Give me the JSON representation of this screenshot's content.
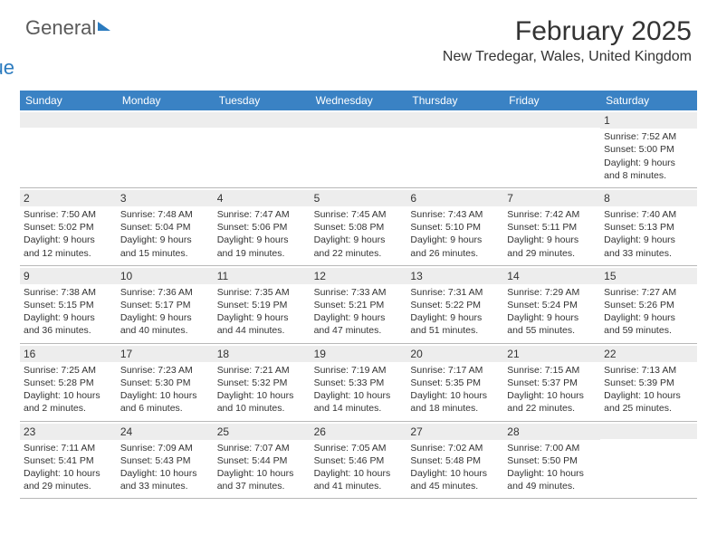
{
  "logo": {
    "text1": "General",
    "text2": "Blue"
  },
  "header": {
    "month_title": "February 2025",
    "location": "New Tredegar, Wales, United Kingdom"
  },
  "colors": {
    "header_bar": "#3a82c4",
    "header_text": "#ffffff",
    "daynum_bg": "#ededed",
    "border": "#b8b8b8",
    "text": "#333333",
    "logo_blue": "#2b7bbf",
    "logo_grey": "#5a5a5a"
  },
  "weekdays": [
    "Sunday",
    "Monday",
    "Tuesday",
    "Wednesday",
    "Thursday",
    "Friday",
    "Saturday"
  ],
  "weeks": [
    [
      {
        "day": "",
        "lines": []
      },
      {
        "day": "",
        "lines": []
      },
      {
        "day": "",
        "lines": []
      },
      {
        "day": "",
        "lines": []
      },
      {
        "day": "",
        "lines": []
      },
      {
        "day": "",
        "lines": []
      },
      {
        "day": "1",
        "lines": [
          "Sunrise: 7:52 AM",
          "Sunset: 5:00 PM",
          "Daylight: 9 hours",
          "and 8 minutes."
        ]
      }
    ],
    [
      {
        "day": "2",
        "lines": [
          "Sunrise: 7:50 AM",
          "Sunset: 5:02 PM",
          "Daylight: 9 hours",
          "and 12 minutes."
        ]
      },
      {
        "day": "3",
        "lines": [
          "Sunrise: 7:48 AM",
          "Sunset: 5:04 PM",
          "Daylight: 9 hours",
          "and 15 minutes."
        ]
      },
      {
        "day": "4",
        "lines": [
          "Sunrise: 7:47 AM",
          "Sunset: 5:06 PM",
          "Daylight: 9 hours",
          "and 19 minutes."
        ]
      },
      {
        "day": "5",
        "lines": [
          "Sunrise: 7:45 AM",
          "Sunset: 5:08 PM",
          "Daylight: 9 hours",
          "and 22 minutes."
        ]
      },
      {
        "day": "6",
        "lines": [
          "Sunrise: 7:43 AM",
          "Sunset: 5:10 PM",
          "Daylight: 9 hours",
          "and 26 minutes."
        ]
      },
      {
        "day": "7",
        "lines": [
          "Sunrise: 7:42 AM",
          "Sunset: 5:11 PM",
          "Daylight: 9 hours",
          "and 29 minutes."
        ]
      },
      {
        "day": "8",
        "lines": [
          "Sunrise: 7:40 AM",
          "Sunset: 5:13 PM",
          "Daylight: 9 hours",
          "and 33 minutes."
        ]
      }
    ],
    [
      {
        "day": "9",
        "lines": [
          "Sunrise: 7:38 AM",
          "Sunset: 5:15 PM",
          "Daylight: 9 hours",
          "and 36 minutes."
        ]
      },
      {
        "day": "10",
        "lines": [
          "Sunrise: 7:36 AM",
          "Sunset: 5:17 PM",
          "Daylight: 9 hours",
          "and 40 minutes."
        ]
      },
      {
        "day": "11",
        "lines": [
          "Sunrise: 7:35 AM",
          "Sunset: 5:19 PM",
          "Daylight: 9 hours",
          "and 44 minutes."
        ]
      },
      {
        "day": "12",
        "lines": [
          "Sunrise: 7:33 AM",
          "Sunset: 5:21 PM",
          "Daylight: 9 hours",
          "and 47 minutes."
        ]
      },
      {
        "day": "13",
        "lines": [
          "Sunrise: 7:31 AM",
          "Sunset: 5:22 PM",
          "Daylight: 9 hours",
          "and 51 minutes."
        ]
      },
      {
        "day": "14",
        "lines": [
          "Sunrise: 7:29 AM",
          "Sunset: 5:24 PM",
          "Daylight: 9 hours",
          "and 55 minutes."
        ]
      },
      {
        "day": "15",
        "lines": [
          "Sunrise: 7:27 AM",
          "Sunset: 5:26 PM",
          "Daylight: 9 hours",
          "and 59 minutes."
        ]
      }
    ],
    [
      {
        "day": "16",
        "lines": [
          "Sunrise: 7:25 AM",
          "Sunset: 5:28 PM",
          "Daylight: 10 hours",
          "and 2 minutes."
        ]
      },
      {
        "day": "17",
        "lines": [
          "Sunrise: 7:23 AM",
          "Sunset: 5:30 PM",
          "Daylight: 10 hours",
          "and 6 minutes."
        ]
      },
      {
        "day": "18",
        "lines": [
          "Sunrise: 7:21 AM",
          "Sunset: 5:32 PM",
          "Daylight: 10 hours",
          "and 10 minutes."
        ]
      },
      {
        "day": "19",
        "lines": [
          "Sunrise: 7:19 AM",
          "Sunset: 5:33 PM",
          "Daylight: 10 hours",
          "and 14 minutes."
        ]
      },
      {
        "day": "20",
        "lines": [
          "Sunrise: 7:17 AM",
          "Sunset: 5:35 PM",
          "Daylight: 10 hours",
          "and 18 minutes."
        ]
      },
      {
        "day": "21",
        "lines": [
          "Sunrise: 7:15 AM",
          "Sunset: 5:37 PM",
          "Daylight: 10 hours",
          "and 22 minutes."
        ]
      },
      {
        "day": "22",
        "lines": [
          "Sunrise: 7:13 AM",
          "Sunset: 5:39 PM",
          "Daylight: 10 hours",
          "and 25 minutes."
        ]
      }
    ],
    [
      {
        "day": "23",
        "lines": [
          "Sunrise: 7:11 AM",
          "Sunset: 5:41 PM",
          "Daylight: 10 hours",
          "and 29 minutes."
        ]
      },
      {
        "day": "24",
        "lines": [
          "Sunrise: 7:09 AM",
          "Sunset: 5:43 PM",
          "Daylight: 10 hours",
          "and 33 minutes."
        ]
      },
      {
        "day": "25",
        "lines": [
          "Sunrise: 7:07 AM",
          "Sunset: 5:44 PM",
          "Daylight: 10 hours",
          "and 37 minutes."
        ]
      },
      {
        "day": "26",
        "lines": [
          "Sunrise: 7:05 AM",
          "Sunset: 5:46 PM",
          "Daylight: 10 hours",
          "and 41 minutes."
        ]
      },
      {
        "day": "27",
        "lines": [
          "Sunrise: 7:02 AM",
          "Sunset: 5:48 PM",
          "Daylight: 10 hours",
          "and 45 minutes."
        ]
      },
      {
        "day": "28",
        "lines": [
          "Sunrise: 7:00 AM",
          "Sunset: 5:50 PM",
          "Daylight: 10 hours",
          "and 49 minutes."
        ]
      },
      {
        "day": "",
        "lines": []
      }
    ]
  ]
}
